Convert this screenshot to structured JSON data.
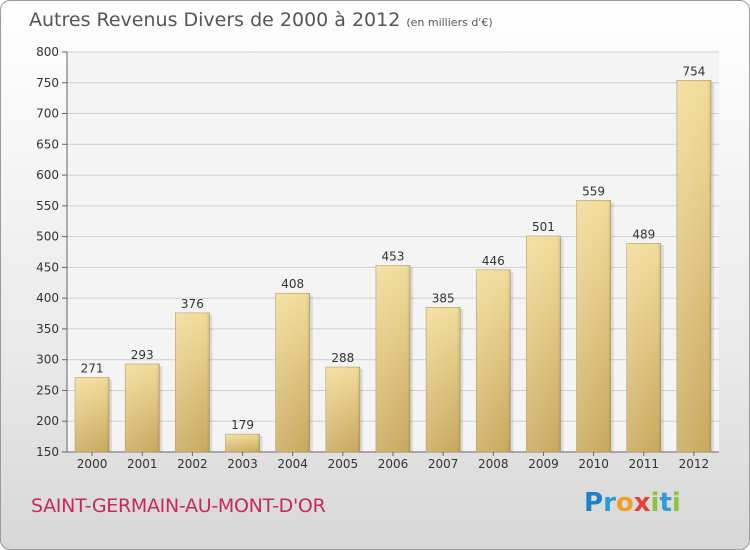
{
  "title": "Autres Revenus Divers de 2000 à 2012",
  "subtitle": "(en milliers d'€)",
  "city": "SAINT-GERMAIN-AU-MONT-D'OR",
  "logo": {
    "text": "Proxiti"
  },
  "colors": {
    "bar_top": "#f2dc9a",
    "bar_bottom": "#c9a95e",
    "bar_edge": "#b59a55",
    "grid": "#cfcfcf",
    "axis_text": "#333333",
    "city_text": "#c8285a"
  },
  "chart_data": {
    "type": "bar",
    "title": "Autres Revenus Divers de 2000 à 2012",
    "subtitle": "(en milliers d'€)",
    "categories": [
      "2000",
      "2001",
      "2002",
      "2003",
      "2004",
      "2005",
      "2006",
      "2007",
      "2008",
      "2009",
      "2010",
      "2011",
      "2012"
    ],
    "values": [
      271,
      293,
      376,
      179,
      408,
      288,
      453,
      385,
      446,
      501,
      559,
      489,
      754
    ],
    "ylim": [
      150,
      800
    ],
    "yticks": [
      150,
      200,
      250,
      300,
      350,
      400,
      450,
      500,
      550,
      600,
      650,
      700,
      750,
      800
    ],
    "grid": true,
    "xlabel": "",
    "ylabel": ""
  }
}
